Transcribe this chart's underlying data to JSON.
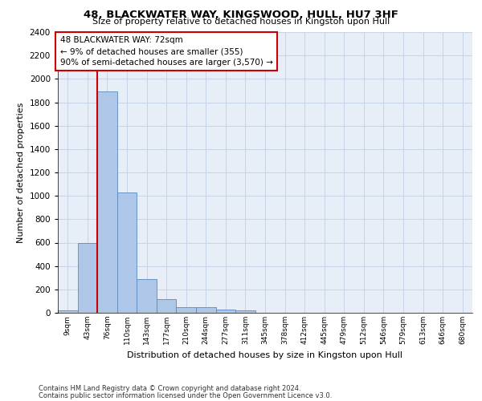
{
  "title_line1": "48, BLACKWATER WAY, KINGSWOOD, HULL, HU7 3HF",
  "title_line2": "Size of property relative to detached houses in Kingston upon Hull",
  "xlabel": "Distribution of detached houses by size in Kingston upon Hull",
  "ylabel": "Number of detached properties",
  "footer_line1": "Contains HM Land Registry data © Crown copyright and database right 2024.",
  "footer_line2": "Contains public sector information licensed under the Open Government Licence v3.0.",
  "bar_labels": [
    "9sqm",
    "43sqm",
    "76sqm",
    "110sqm",
    "143sqm",
    "177sqm",
    "210sqm",
    "244sqm",
    "277sqm",
    "311sqm",
    "345sqm",
    "378sqm",
    "412sqm",
    "445sqm",
    "479sqm",
    "512sqm",
    "546sqm",
    "579sqm",
    "613sqm",
    "646sqm",
    "680sqm"
  ],
  "bar_values": [
    20,
    600,
    1890,
    1030,
    290,
    120,
    50,
    45,
    28,
    20,
    0,
    0,
    0,
    0,
    0,
    0,
    0,
    0,
    0,
    0,
    0
  ],
  "bar_color": "#aec6e8",
  "bar_edge_color": "#5a8abf",
  "ylim": [
    0,
    2400
  ],
  "yticks": [
    0,
    200,
    400,
    600,
    800,
    1000,
    1200,
    1400,
    1600,
    1800,
    2000,
    2200,
    2400
  ],
  "annotation_box_text": "48 BLACKWATER WAY: 72sqm\n← 9% of detached houses are smaller (355)\n90% of semi-detached houses are larger (3,570) →",
  "annotation_box_color": "#cc0000",
  "red_line_index": 2,
  "grid_color": "#c8d4e8",
  "bg_color": "#e8eef8"
}
